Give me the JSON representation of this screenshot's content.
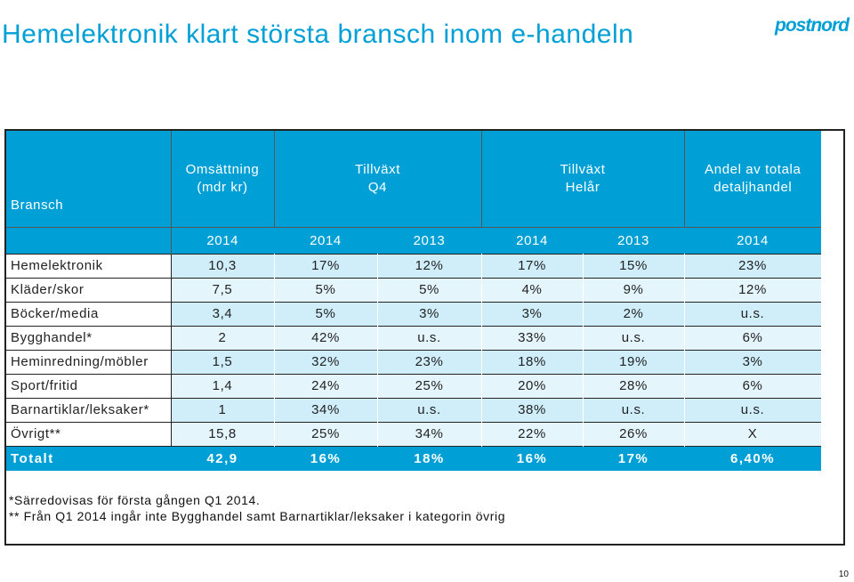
{
  "title": "Hemelektronik klart största bransch inom e-handeln",
  "logo_text": "postnord",
  "brand_color": "#00a0d6",
  "table": {
    "headers": {
      "bransch": "Bransch",
      "omsattning": "Omsättning\n(mdr kr)",
      "tillvaxt_q4": "Tillväxt\nQ4",
      "tillvaxt_helar": "Tillväxt\nHelår",
      "andel": "Andel av totala\ndetaljhandel"
    },
    "years": [
      "2014",
      "2014",
      "2013",
      "2014",
      "2013",
      "2014"
    ],
    "rows": [
      {
        "label": "Hemelektronik",
        "values": [
          "10,3",
          "17%",
          "12%",
          "17%",
          "15%",
          "23%"
        ]
      },
      {
        "label": "Kläder/skor",
        "values": [
          "7,5",
          "5%",
          "5%",
          "4%",
          "9%",
          "12%"
        ]
      },
      {
        "label": "Böcker/media",
        "values": [
          "3,4",
          "5%",
          "3%",
          "3%",
          "2%",
          "u.s."
        ]
      },
      {
        "label": "Bygghandel*",
        "values": [
          "2",
          "42%",
          "u.s.",
          "33%",
          "u.s.",
          "6%"
        ]
      },
      {
        "label": "Heminredning/möbler",
        "values": [
          "1,5",
          "32%",
          "23%",
          "18%",
          "19%",
          "3%"
        ]
      },
      {
        "label": "Sport/fritid",
        "values": [
          "1,4",
          "24%",
          "25%",
          "20%",
          "28%",
          "6%"
        ]
      },
      {
        "label": "Barnartiklar/leksaker*",
        "values": [
          "1",
          "34%",
          "u.s.",
          "38%",
          "u.s.",
          "u.s."
        ]
      },
      {
        "label": "Övrigt**",
        "values": [
          "15,8",
          "25%",
          "34%",
          "22%",
          "26%",
          "X"
        ]
      }
    ],
    "total": {
      "label": "Totalt",
      "values": [
        "42,9",
        "16%",
        "18%",
        "16%",
        "17%",
        "6,40%"
      ]
    }
  },
  "footnotes": [
    "*Särredovisas för första gången Q1 2014.",
    "** Från Q1 2014 ingår inte Bygghandel samt Barnartiklar/leksaker i kategorin övrig"
  ],
  "page_number": "10"
}
